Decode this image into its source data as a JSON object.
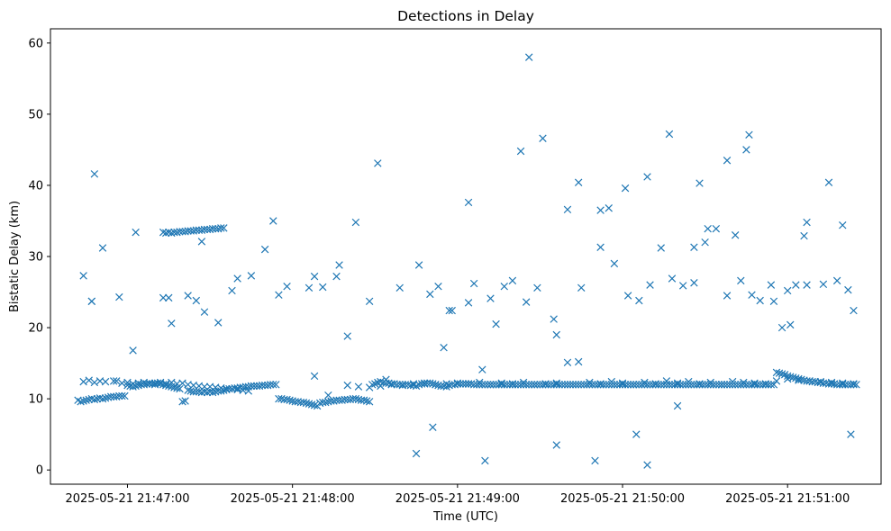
{
  "chart_data": {
    "type": "scatter",
    "title": "Detections in Delay",
    "xlabel": "Time (UTC)",
    "ylabel": "Bistatic Delay (km)",
    "marker": "x",
    "color": "#1f77b4",
    "grid": false,
    "legend": "none",
    "x_unit": "time (UTC)",
    "xlim": [
      "2025-05-21 21:46:32",
      "2025-05-21 21:51:34"
    ],
    "ylim": [
      -2,
      62
    ],
    "x_ticks": [
      "2025-05-21 21:47:00",
      "2025-05-21 21:48:00",
      "2025-05-21 21:49:00",
      "2025-05-21 21:50:00",
      "2025-05-21 21:51:00"
    ],
    "y_ticks": [
      "0",
      "10",
      "20",
      "30",
      "40",
      "50",
      "60"
    ],
    "series": [
      {
        "x": [
          "21:46:42",
          "21:46:43",
          "21:46:44",
          "21:46:45",
          "21:46:46",
          "21:46:47",
          "21:46:48",
          "21:46:49",
          "21:46:50",
          "21:46:51",
          "21:46:52",
          "21:46:53",
          "21:46:54",
          "21:46:55",
          "21:46:56",
          "21:46:57",
          "21:46:58",
          "21:46:59",
          "21:47:00",
          "21:47:01",
          "21:47:02",
          "21:47:03",
          "21:47:04",
          "21:47:05",
          "21:47:06",
          "21:47:07",
          "21:47:08",
          "21:47:09",
          "21:47:10",
          "21:47:11",
          "21:47:12",
          "21:47:13",
          "21:47:14",
          "21:47:15",
          "21:47:16",
          "21:47:17",
          "21:47:18",
          "21:47:19",
          "21:47:20",
          "21:47:21",
          "21:47:22",
          "21:47:23",
          "21:47:24",
          "21:47:25",
          "21:47:26",
          "21:47:27",
          "21:47:28",
          "21:47:29",
          "21:47:30",
          "21:47:31",
          "21:47:32",
          "21:47:33",
          "21:47:34",
          "21:47:35",
          "21:47:36",
          "21:47:37",
          "21:47:38",
          "21:47:39",
          "21:47:40",
          "21:47:41",
          "21:47:42",
          "21:47:43",
          "21:47:44",
          "21:47:45",
          "21:47:46",
          "21:47:47",
          "21:47:48",
          "21:47:49",
          "21:47:50",
          "21:47:51",
          "21:47:52",
          "21:47:53",
          "21:47:54",
          "21:47:55",
          "21:47:56",
          "21:47:57",
          "21:47:58",
          "21:47:59",
          "21:48:00",
          "21:48:01",
          "21:48:02",
          "21:48:03",
          "21:48:04",
          "21:48:05",
          "21:48:06",
          "21:48:07",
          "21:48:08",
          "21:48:09",
          "21:48:10",
          "21:48:11",
          "21:48:12",
          "21:48:13",
          "21:48:14",
          "21:48:15",
          "21:48:16",
          "21:48:17",
          "21:48:18",
          "21:48:19",
          "21:48:20",
          "21:48:21",
          "21:48:22",
          "21:48:23",
          "21:48:24",
          "21:48:25",
          "21:48:26",
          "21:48:27",
          "21:48:28",
          "21:48:29",
          "21:48:30",
          "21:48:31",
          "21:48:32",
          "21:48:33",
          "21:48:34",
          "21:48:35",
          "21:48:36",
          "21:48:37",
          "21:48:38",
          "21:48:39",
          "21:48:40",
          "21:48:41",
          "21:48:42",
          "21:48:43",
          "21:48:44",
          "21:48:45",
          "21:48:46",
          "21:48:47",
          "21:48:48",
          "21:48:49",
          "21:48:50",
          "21:48:51",
          "21:48:52",
          "21:48:53",
          "21:48:54",
          "21:48:55",
          "21:48:56",
          "21:48:57",
          "21:48:58",
          "21:48:59",
          "21:49:00",
          "21:49:01",
          "21:49:02",
          "21:49:03",
          "21:49:04",
          "21:49:05",
          "21:49:06",
          "21:49:07",
          "21:49:08",
          "21:49:09",
          "21:49:10",
          "21:49:11",
          "21:49:12",
          "21:49:13",
          "21:49:14",
          "21:49:15",
          "21:49:16",
          "21:49:17",
          "21:49:18",
          "21:49:19",
          "21:49:20",
          "21:49:21",
          "21:49:22",
          "21:49:23",
          "21:49:24",
          "21:49:25",
          "21:49:26",
          "21:49:27",
          "21:49:28",
          "21:49:29",
          "21:49:30",
          "21:49:31",
          "21:49:32",
          "21:49:33",
          "21:49:34",
          "21:49:35",
          "21:49:36",
          "21:49:37",
          "21:49:38",
          "21:49:39",
          "21:49:40",
          "21:49:41",
          "21:49:42",
          "21:49:43",
          "21:49:44",
          "21:49:45",
          "21:49:46",
          "21:49:47",
          "21:49:48",
          "21:49:49",
          "21:49:50",
          "21:49:51",
          "21:49:52",
          "21:49:53",
          "21:49:54",
          "21:49:55",
          "21:49:56",
          "21:49:57",
          "21:49:58",
          "21:49:59",
          "21:50:00",
          "21:50:01",
          "21:50:02",
          "21:50:03",
          "21:50:04",
          "21:50:05",
          "21:50:06",
          "21:50:07",
          "21:50:08",
          "21:50:09",
          "21:50:10",
          "21:50:11",
          "21:50:12",
          "21:50:13",
          "21:50:14",
          "21:50:15",
          "21:50:16",
          "21:50:17",
          "21:50:18",
          "21:50:19",
          "21:50:20",
          "21:50:21",
          "21:50:22",
          "21:50:23",
          "21:50:24",
          "21:50:25",
          "21:50:26",
          "21:50:27",
          "21:50:28",
          "21:50:29",
          "21:50:30",
          "21:50:31",
          "21:50:32",
          "21:50:33",
          "21:50:34",
          "21:50:35",
          "21:50:36",
          "21:50:37",
          "21:50:38",
          "21:50:39",
          "21:50:40",
          "21:50:41",
          "21:50:42",
          "21:50:43",
          "21:50:44",
          "21:50:45",
          "21:50:46",
          "21:50:47",
          "21:50:48",
          "21:50:49",
          "21:50:50",
          "21:50:51",
          "21:50:52",
          "21:50:53",
          "21:50:54",
          "21:50:55",
          "21:50:56",
          "21:50:57",
          "21:50:58",
          "21:50:59",
          "21:51:00",
          "21:51:01",
          "21:51:02",
          "21:51:03",
          "21:51:04",
          "21:51:05",
          "21:51:06",
          "21:51:07",
          "21:51:08",
          "21:51:09",
          "21:51:10",
          "21:51:11",
          "21:51:12",
          "21:51:13",
          "21:51:14",
          "21:51:15",
          "21:51:16",
          "21:51:17",
          "21:51:18",
          "21:51:19",
          "21:51:20",
          "21:51:21",
          "21:51:22",
          "21:51:23",
          "21:51:24",
          "21:51:25",
          "21:46:44",
          "21:46:46",
          "21:46:48",
          "21:46:50",
          "21:46:52",
          "21:46:56",
          "21:46:58",
          "21:47:00",
          "21:47:02",
          "21:47:04",
          "21:47:06",
          "21:47:08",
          "21:47:10",
          "21:47:12",
          "21:47:14",
          "21:47:16",
          "21:47:18",
          "21:47:20",
          "21:47:22",
          "21:47:24",
          "21:47:26",
          "21:47:28",
          "21:47:30",
          "21:47:32",
          "21:47:34",
          "21:47:36",
          "21:47:38",
          "21:47:40",
          "21:47:42",
          "21:47:44",
          "21:48:20",
          "21:48:24",
          "21:48:28",
          "21:48:32",
          "21:48:36",
          "21:48:40",
          "21:48:44",
          "21:48:48",
          "21:48:52",
          "21:48:56",
          "21:49:00",
          "21:49:04",
          "21:49:08",
          "21:49:12",
          "21:49:16",
          "21:49:20",
          "21:49:24",
          "21:49:28",
          "21:49:32",
          "21:49:36",
          "21:49:40",
          "21:49:44",
          "21:49:48",
          "21:49:52",
          "21:49:56",
          "21:50:00",
          "21:50:04",
          "21:50:08",
          "21:50:12",
          "21:50:16",
          "21:50:20",
          "21:50:24",
          "21:50:28",
          "21:50:32",
          "21:50:36",
          "21:50:40",
          "21:50:44",
          "21:50:48",
          "21:50:52",
          "21:50:56",
          "21:51:00",
          "21:51:04",
          "21:51:08",
          "21:51:12",
          "21:51:16",
          "21:51:20",
          "21:51:24",
          "21:47:13",
          "21:47:14",
          "21:47:15",
          "21:47:16",
          "21:47:17",
          "21:47:18",
          "21:47:19",
          "21:47:20",
          "21:47:21",
          "21:47:22",
          "21:47:23",
          "21:47:24",
          "21:47:25",
          "21:47:26",
          "21:47:27",
          "21:47:28",
          "21:47:29",
          "21:47:30",
          "21:47:31",
          "21:47:32",
          "21:47:33",
          "21:47:34",
          "21:47:35",
          "21:46:47",
          "21:46:57",
          "21:47:03",
          "21:47:13",
          "21:47:15",
          "21:47:27",
          "21:47:38",
          "21:47:45",
          "21:47:50",
          "21:47:58",
          "21:48:06",
          "21:48:08",
          "21:48:17",
          "21:48:23",
          "21:48:28",
          "21:48:34",
          "21:48:39",
          "21:48:46",
          "21:48:55",
          "21:48:57",
          "21:49:04",
          "21:49:06",
          "21:49:09",
          "21:49:12",
          "21:49:17",
          "21:49:20",
          "21:49:25",
          "21:49:29",
          "21:49:35",
          "21:49:40",
          "21:49:45",
          "21:49:52",
          "21:49:57",
          "21:50:02",
          "21:50:06",
          "21:50:10",
          "21:50:14",
          "21:50:18",
          "21:50:22",
          "21:50:26",
          "21:50:30",
          "21:50:34",
          "21:50:38",
          "21:50:43",
          "21:50:47",
          "21:50:50",
          "21:50:54",
          "21:50:58",
          "21:51:03",
          "21:51:07",
          "21:51:13",
          "21:51:18",
          "21:51:22",
          "21:46:47",
          "21:46:51",
          "21:46:55",
          "21:47:02",
          "21:47:16",
          "21:47:25",
          "21:47:33",
          "21:47:40",
          "21:47:55",
          "21:48:11",
          "21:48:16",
          "21:48:20",
          "21:48:31",
          "21:48:50",
          "21:48:53",
          "21:48:58",
          "21:49:04",
          "21:49:14",
          "21:49:23",
          "21:49:31",
          "21:49:36",
          "21:49:44",
          "21:49:52",
          "21:49:55",
          "21:50:01",
          "21:50:09",
          "21:50:17",
          "21:50:26",
          "21:50:31",
          "21:50:38",
          "21:50:45",
          "21:50:55",
          "21:51:00",
          "21:51:06",
          "21:51:15",
          "21:51:20",
          "21:51:24",
          "21:46:44",
          "21:46:48",
          "21:47:22",
          "21:47:28",
          "21:47:53",
          "21:48:08",
          "21:48:13",
          "21:48:45",
          "21:48:51",
          "21:49:10",
          "21:49:26",
          "21:49:36",
          "21:49:50",
          "21:50:05",
          "21:50:09",
          "21:50:20",
          "21:50:28",
          "21:50:41",
          "21:50:46",
          "21:51:01",
          "21:51:07",
          "21:51:23"
        ],
        "y": [
          9.8,
          9.6,
          9.7,
          9.8,
          9.9,
          10.0,
          9.9,
          10.0,
          10.1,
          10.0,
          10.1,
          10.2,
          10.3,
          10.3,
          10.3,
          10.4,
          10.4,
          10.4,
          11.9,
          11.8,
          11.7,
          11.8,
          11.9,
          12.0,
          12.0,
          12.1,
          12.1,
          12.1,
          12.2,
          12.2,
          12.1,
          12.0,
          11.9,
          11.8,
          11.7,
          11.6,
          11.5,
          11.4,
          9.6,
          9.7,
          11.2,
          11.1,
          11.0,
          11.0,
          11.0,
          10.9,
          11.0,
          10.9,
          11.0,
          10.9,
          11.0,
          11.1,
          11.1,
          11.2,
          11.3,
          11.4,
          11.4,
          11.5,
          11.5,
          11.6,
          11.6,
          11.7,
          11.7,
          11.8,
          11.8,
          11.8,
          11.8,
          11.9,
          11.9,
          11.9,
          12.0,
          12.0,
          12.0,
          10.0,
          10.0,
          9.9,
          9.9,
          9.8,
          9.7,
          9.6,
          9.6,
          9.5,
          9.5,
          9.4,
          9.3,
          9.2,
          9.1,
          9.0,
          9.4,
          9.5,
          9.5,
          9.6,
          9.7,
          9.7,
          9.8,
          9.8,
          9.8,
          9.9,
          9.9,
          9.9,
          10.0,
          10.0,
          9.9,
          9.8,
          9.8,
          9.7,
          9.6,
          12.0,
          12.1,
          12.3,
          12.4,
          12.3,
          12.2,
          12.2,
          12.1,
          12.1,
          12.0,
          12.0,
          12.0,
          12.0,
          12.0,
          11.9,
          11.9,
          11.8,
          12.0,
          12.1,
          12.1,
          12.2,
          12.2,
          12.1,
          12.0,
          11.9,
          11.8,
          11.8,
          11.7,
          11.9,
          12.0,
          12.0,
          12.1,
          12.1,
          12.1,
          12.1,
          12.1,
          12.1,
          12.0,
          12.0,
          12.0,
          12.0,
          12.0,
          12.0,
          12.0,
          12.0,
          12.0,
          12.0,
          12.0,
          12.0,
          12.0,
          12.0,
          12.0,
          12.0,
          12.0,
          12.0,
          12.0,
          12.0,
          12.0,
          12.0,
          12.0,
          12.0,
          12.0,
          12.0,
          12.0,
          12.0,
          12.0,
          12.0,
          12.0,
          12.0,
          12.0,
          12.0,
          12.0,
          12.0,
          12.0,
          12.0,
          12.0,
          12.0,
          12.0,
          12.0,
          12.0,
          12.0,
          12.0,
          12.0,
          12.0,
          12.0,
          12.0,
          12.0,
          12.0,
          12.0,
          12.0,
          12.0,
          12.0,
          12.0,
          12.0,
          12.0,
          12.0,
          12.0,
          12.0,
          12.0,
          12.0,
          12.0,
          12.0,
          12.0,
          12.0,
          12.0,
          12.0,
          12.0,
          12.0,
          12.0,
          12.0,
          12.0,
          12.0,
          12.0,
          12.0,
          12.0,
          12.0,
          12.0,
          12.0,
          12.0,
          12.0,
          12.0,
          12.0,
          12.0,
          12.0,
          12.0,
          12.0,
          12.0,
          12.0,
          12.0,
          12.0,
          12.0,
          12.0,
          12.0,
          12.0,
          12.0,
          12.0,
          12.0,
          12.0,
          12.0,
          12.0,
          12.0,
          12.0,
          12.0,
          12.0,
          12.0,
          12.0,
          12.0,
          13.7,
          13.6,
          13.5,
          13.4,
          13.2,
          13.1,
          13.0,
          12.9,
          12.8,
          12.7,
          12.6,
          12.5,
          12.5,
          12.4,
          12.4,
          12.3,
          12.3,
          12.2,
          12.2,
          12.1,
          12.1,
          12.1,
          12.0,
          12.0,
          12.0,
          12.0,
          12.0,
          12.0,
          12.0,
          12.0,
          12.4,
          12.6,
          12.3,
          12.5,
          12.4,
          12.5,
          12.2,
          12.3,
          12.1,
          12.2,
          12.3,
          12.2,
          12.0,
          12.3,
          12.1,
          12.3,
          12.1,
          12.2,
          12.0,
          11.9,
          11.8,
          11.7,
          11.7,
          11.6,
          11.5,
          11.4,
          11.4,
          11.3,
          11.2,
          11.1,
          11.9,
          11.7,
          11.6,
          11.8,
          12.0,
          11.9,
          12.1,
          12.2,
          12.0,
          12.1,
          12.2,
          12.1,
          12.3,
          12.0,
          12.2,
          12.1,
          12.3,
          12.0,
          12.1,
          12.2,
          15.1,
          15.2,
          12.3,
          12.1,
          12.4,
          12.2,
          12.0,
          12.3,
          12.1,
          12.5,
          12.2,
          12.4,
          12.1,
          12.3,
          12.0,
          12.4,
          12.3,
          12.2,
          12.1,
          12.5,
          12.8,
          12.6,
          12.5,
          12.4,
          12.3,
          12.2,
          12.1,
          33.4,
          33.3,
          33.4,
          33.3,
          33.4,
          33.4,
          33.5,
          33.5,
          33.5,
          33.6,
          33.6,
          33.6,
          33.7,
          33.7,
          33.7,
          33.8,
          33.8,
          33.8,
          33.9,
          33.9,
          33.9,
          34.0,
          34.0,
          23.7,
          24.3,
          33.4,
          24.2,
          24.2,
          32.1,
          25.2,
          27.3,
          31.0,
          25.8,
          25.6,
          27.2,
          28.8,
          34.8,
          23.7,
          12.7,
          25.6,
          28.8,
          17.2,
          22.4,
          23.5,
          26.2,
          14.1,
          24.1,
          25.8,
          26.6,
          23.6,
          25.6,
          21.2,
          36.6,
          25.6,
          31.3,
          29.0,
          24.5,
          23.8,
          26.0,
          31.2,
          26.9,
          25.9,
          31.3,
          32.0,
          33.9,
          24.5,
          26.6,
          24.6,
          23.8,
          26.0,
          20.0,
          26.0,
          26.0,
          26.1,
          26.6,
          25.3,
          23.7,
          31.2,
          12.5,
          16.8,
          20.6,
          23.8,
          20.7,
          26.9,
          24.6,
          25.7,
          27.2,
          18.8,
          43.1,
          24.7,
          25.8,
          22.4,
          37.6,
          20.5,
          44.8,
          46.6,
          19.0,
          40.4,
          36.5,
          36.8,
          39.6,
          41.2,
          47.2,
          26.3,
          33.9,
          43.5,
          45.0,
          23.7,
          25.2,
          32.9,
          40.4,
          34.4,
          22.4,
          27.3,
          41.6,
          24.5,
          22.2,
          35.0,
          13.2,
          10.5,
          2.3,
          6.0,
          1.3,
          58.0,
          3.5,
          1.3,
          5.0,
          0.7,
          9.0,
          40.3,
          33.0,
          47.1,
          20.4,
          34.8,
          5.0
        ]
      }
    ]
  }
}
